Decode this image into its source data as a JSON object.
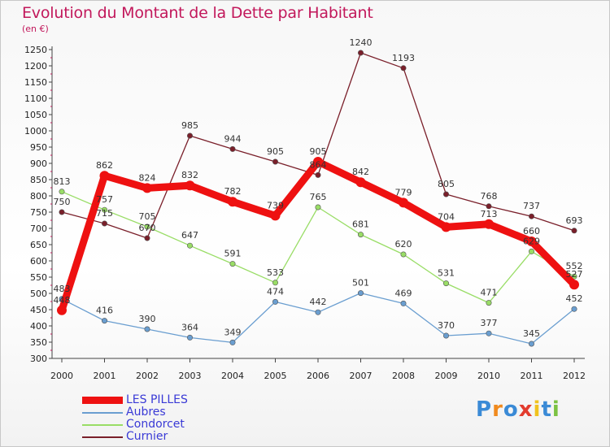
{
  "title": "Evolution du Montant de la Dette par Habitant",
  "unit": "(en €)",
  "logo": {
    "letters": [
      {
        "ch": "P",
        "color": "#3a8ad6"
      },
      {
        "ch": "r",
        "color": "#f08a1e"
      },
      {
        "ch": "o",
        "color": "#3a8ad6"
      },
      {
        "ch": "x",
        "color": "#e23b2e"
      },
      {
        "ch": "i",
        "color": "#f0c21e"
      },
      {
        "ch": "t",
        "color": "#3a8ad6"
      },
      {
        "ch": "i",
        "color": "#7cc242"
      }
    ]
  },
  "chart_data": {
    "type": "line",
    "x": [
      "2000",
      "2001",
      "2002",
      "2003",
      "2004",
      "2005",
      "2006",
      "2007",
      "2008",
      "2009",
      "2010",
      "2011",
      "2012"
    ],
    "ylim": [
      300,
      1250
    ],
    "yticks": [
      300,
      350,
      400,
      450,
      500,
      550,
      600,
      650,
      700,
      750,
      800,
      850,
      900,
      950,
      1000,
      1050,
      1100,
      1150,
      1200,
      1250
    ],
    "grid": false,
    "legend_position": "bottom-left",
    "series": [
      {
        "name": "Curnier",
        "color": "#7a1f2a",
        "values": [
          750,
          715,
          670,
          985,
          944,
          905,
          864,
          1240,
          1193,
          805,
          768,
          737,
          693
        ],
        "labels": [
          "750",
          "715",
          "670",
          "985",
          "944",
          "905",
          "864",
          "1240",
          "1193",
          "805",
          "768",
          "737",
          "693"
        ]
      },
      {
        "name": "Condorcet",
        "color": "#99dd66",
        "values": [
          813,
          757,
          705,
          647,
          591,
          533,
          765,
          681,
          620,
          531,
          471,
          629,
          552
        ],
        "labels": [
          "813",
          "757",
          "705",
          "647",
          "591",
          "533",
          "765",
          "681",
          "620",
          "531",
          "471",
          "629",
          "552"
        ]
      },
      {
        "name": "Aubres",
        "color": "#6a9ed0",
        "values": [
          483,
          416,
          390,
          364,
          349,
          474,
          442,
          501,
          469,
          370,
          377,
          345,
          452
        ],
        "labels": [
          "483",
          "416",
          "390",
          "364",
          "349",
          "474",
          "442",
          "501",
          "469",
          "370",
          "377",
          "345",
          "452"
        ]
      },
      {
        "name": "LES PILLES",
        "color": "#ee1111",
        "values": [
          448,
          862,
          824,
          832,
          782,
          739,
          905,
          842,
          779,
          704,
          713,
          660,
          527
        ],
        "labels": [
          "448",
          "862",
          "824",
          "832",
          "782",
          "739",
          "905",
          "842",
          "779",
          "704",
          "713",
          "660",
          "527"
        ]
      }
    ],
    "legend_order": [
      "LES PILLES",
      "Aubres",
      "Condorcet",
      "Curnier"
    ]
  }
}
